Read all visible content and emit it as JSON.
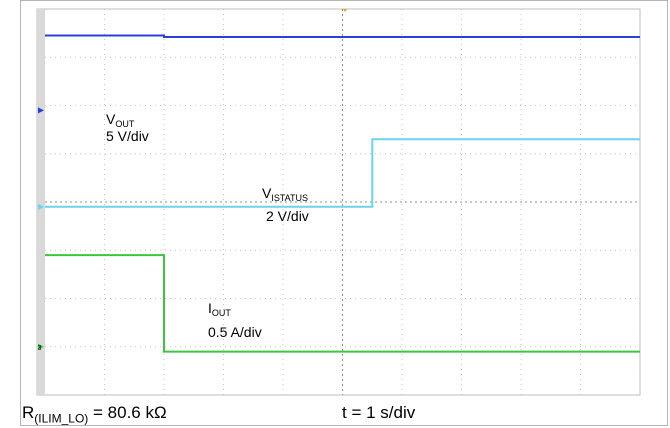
{
  "chart_data": {
    "type": "line",
    "title": "",
    "xlabel": "",
    "ylabel": "",
    "grid": true,
    "x_divisions": 10,
    "y_divisions": 8,
    "timebase": "t = 1 s/div",
    "condition": {
      "prefix": "R",
      "subscript": "(ILIM_LO)",
      "value": " = 80.6 kΩ"
    },
    "series": [
      {
        "name": "VOUT",
        "label_main": "V",
        "label_sub": "OUT",
        "scale": "5 V/div",
        "color": "#2a3fd6",
        "marker": "",
        "x": [
          0,
          2.0,
          2.0,
          10
        ],
        "y": [
          7.45,
          7.45,
          7.42,
          7.42
        ]
      },
      {
        "name": "VISTATUS",
        "label_main": "V",
        "label_sub": "ISTATUS",
        "scale": "2 V/div",
        "color": "#6ad4ec",
        "marker": "",
        "x": [
          0,
          5.5,
          5.5,
          10
        ],
        "y": [
          3.9,
          3.9,
          5.3,
          5.3
        ]
      },
      {
        "name": "IOUT",
        "label_main": "I",
        "label_sub": "OUT",
        "scale": "0.5 A/div",
        "color": "#3ec43e",
        "marker": "3",
        "x": [
          0,
          2.0,
          2.0,
          10
        ],
        "y": [
          2.9,
          2.9,
          0.9,
          0.9
        ]
      }
    ]
  }
}
